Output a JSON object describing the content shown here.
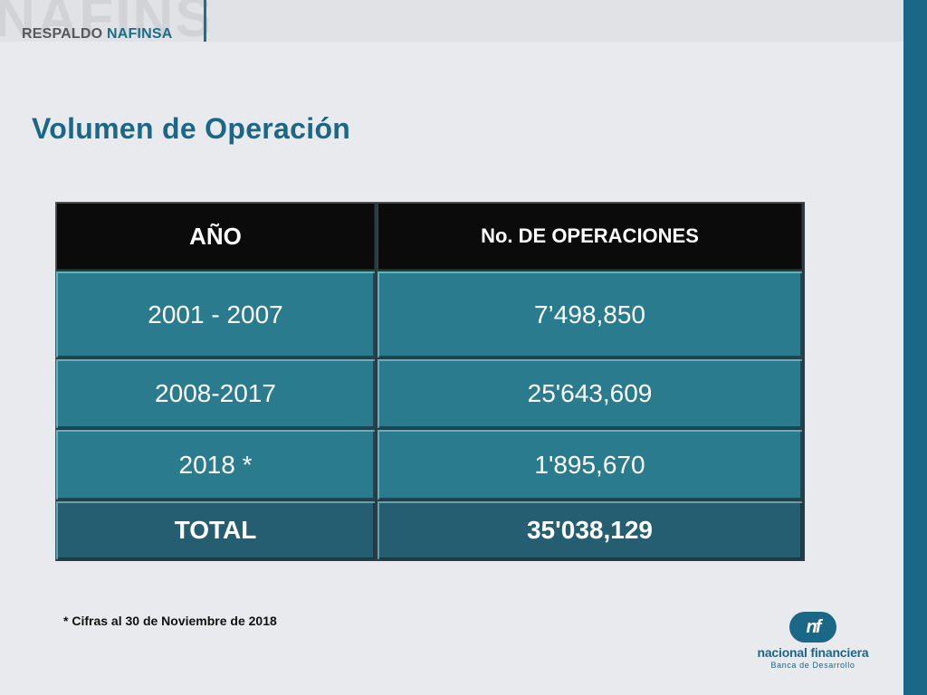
{
  "header": {
    "watermark": "NAFINSA",
    "logo_part1": "RESPALDO",
    "logo_part2": "NAFINSA"
  },
  "title": "Volumen de Operación",
  "table": {
    "headers": [
      "AÑO",
      "No. DE OPERACIONES"
    ],
    "rows": [
      [
        "2001 - 2007",
        "7’498,850"
      ],
      [
        "2008-2017",
        "25'643,609"
      ],
      [
        "2018 *",
        "1'895,670"
      ]
    ],
    "total": [
      "TOTAL",
      "35'038,129"
    ]
  },
  "footnote": "* Cifras al 30 de Noviembre de 2018",
  "brand": {
    "icon_text": "nf",
    "name": "nacional financiera",
    "tagline": "Banca de Desarrollo"
  },
  "colors": {
    "accent": "#1a6787",
    "table_cell": "#2b7b8f",
    "table_total": "#255e71",
    "table_header": "#0b0b0b"
  }
}
